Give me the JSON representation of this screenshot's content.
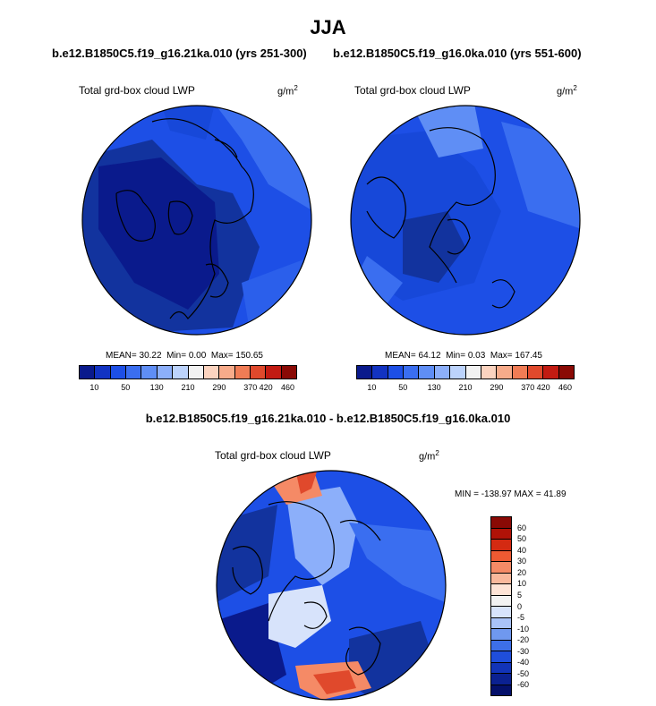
{
  "title": "JJA",
  "panels": {
    "left": {
      "run": "b.e12.B1850C5.f19_g16.21ka.010 (yrs 251-300)",
      "variable": "Total grd-box cloud LWP",
      "units": "g/m",
      "units_exp": "2",
      "mean_label": "MEAN=",
      "mean": "30.22",
      "min_label": "Min=",
      "min": "0.00",
      "max_label": "Max=",
      "max": "150.65"
    },
    "right": {
      "run": "b.e12.B1850C5.f19_g16.0ka.010 (yrs 551-600)",
      "variable": "Total grd-box cloud LWP",
      "units": "g/m",
      "units_exp": "2",
      "mean_label": "MEAN=",
      "mean": "64.12",
      "min_label": "Min=",
      "min": "0.03",
      "max_label": "Max=",
      "max": "167.45"
    },
    "diff": {
      "title": "b.e12.B1850C5.f19_g16.21ka.010 - b.e12.B1850C5.f19_g16.0ka.010",
      "variable": "Total grd-box cloud LWP",
      "units": "g/m",
      "units_exp": "2",
      "minmax": "MIN = -138.97 MAX =  41.89"
    }
  },
  "colorbar_abs": {
    "colors": [
      "#0a1a8c",
      "#1233c2",
      "#1d4fe6",
      "#3a6ef0",
      "#5f8ef5",
      "#8caffa",
      "#bcd3fc",
      "#f2f2f2",
      "#fbd3bf",
      "#f7ab8a",
      "#f07c55",
      "#e0492c",
      "#c21b12",
      "#8a0a05"
    ],
    "labels": [
      "10",
      "50",
      "130",
      "210",
      "290",
      "370",
      "420",
      "460"
    ]
  },
  "colorbar_diff": {
    "colors": [
      "#8a0a05",
      "#b01207",
      "#d42a12",
      "#ee5a32",
      "#f58a66",
      "#f9b89c",
      "#fde3d6",
      "#f2f2f2",
      "#d7e3fb",
      "#a9c3f7",
      "#6f98ef",
      "#3d6fe8",
      "#1f4edb",
      "#1234b8",
      "#0b2191",
      "#04106a"
    ],
    "labels": [
      "60",
      "50",
      "40",
      "30",
      "20",
      "10",
      "5",
      "0",
      "-5",
      "-10",
      "-20",
      "-30",
      "-40",
      "-50",
      "-60"
    ]
  }
}
